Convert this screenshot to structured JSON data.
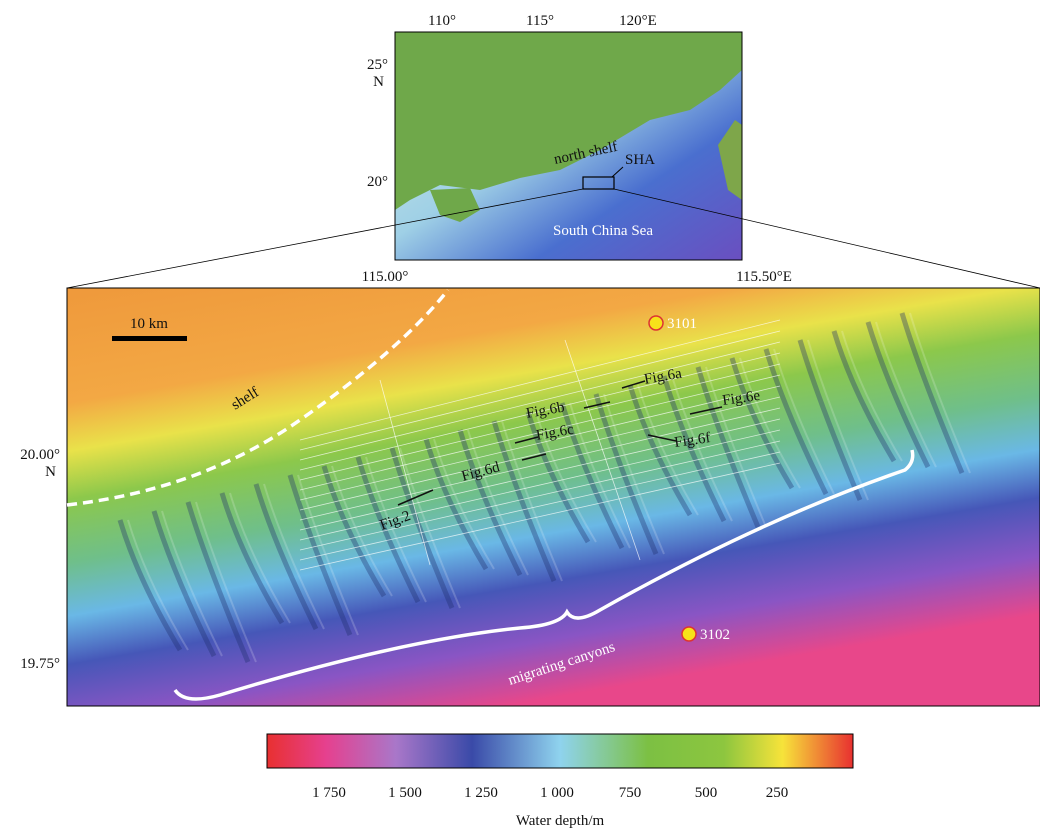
{
  "inset_map": {
    "lon_labels": [
      "110°",
      "115°",
      "120°E"
    ],
    "lat_labels": [
      {
        "degree": "25°",
        "hemisphere": "N"
      },
      {
        "degree": "20°"
      }
    ],
    "labels": {
      "shelf": "north shelf",
      "area": "SHA",
      "sea": "South China Sea"
    }
  },
  "main_map": {
    "lon_labels": [
      "115.00°",
      "115.50°E"
    ],
    "lat_labels": [
      {
        "degree": "20.00°",
        "hemisphere": "N"
      },
      {
        "degree": "19.75°"
      }
    ],
    "scale_bar": "10 km",
    "shelf_label": "shelf",
    "stations": [
      "3101",
      "3102"
    ],
    "figure_lines": [
      "Fig.6a",
      "Fig.6b",
      "Fig.6c",
      "Fig.6d",
      "Fig.6e",
      "Fig.6f",
      "Fig.2"
    ],
    "canyon_label": "migrating canyons"
  },
  "colorbar": {
    "tick_labels": [
      "1 750",
      "1 500",
      "1 250",
      "1 000",
      "750",
      "500",
      "250"
    ],
    "title": "Water depth/m"
  }
}
